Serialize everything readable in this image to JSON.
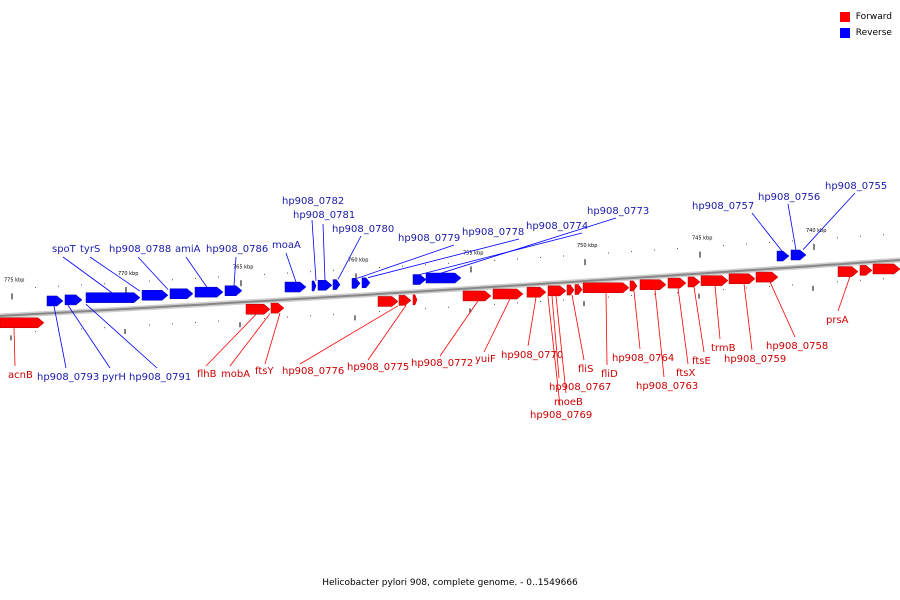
{
  "legend": [
    {
      "label": "Forward",
      "color": "#ff0000"
    },
    {
      "label": "Reverse",
      "color": "#0000ff"
    }
  ],
  "caption": "Helicobacter pylori 908, complete genome. - 0..1549666",
  "colors": {
    "forward": "#ff0000",
    "forward_label": "#cc0000",
    "reverse": "#0000ff",
    "reverse_label": "#1a1aaa",
    "backbone": "#888888"
  },
  "ticks": [
    {
      "kb": 775,
      "label": "775 kbp"
    },
    {
      "kb": 770,
      "label": "770 kbp"
    },
    {
      "kb": 765,
      "label": "765 kbp"
    },
    {
      "kb": 760,
      "label": "760 kbp"
    },
    {
      "kb": 755,
      "label": "755 kbp"
    },
    {
      "kb": 750,
      "label": "750 kbp"
    },
    {
      "kb": 745,
      "label": "745 kbp"
    },
    {
      "kb": 740,
      "label": "740 kbp"
    }
  ],
  "genes_reverse": [
    "spoT",
    "tyrS",
    "hp908_0788",
    "amiA",
    "hp908_0786",
    "moaA",
    "hp908_0782",
    "hp908_0781",
    "hp908_0780",
    "hp908_0779",
    "hp908_0778",
    "hp908_0774",
    "hp908_0773",
    "hp908_0757",
    "hp908_0756",
    "hp908_0755",
    "hp908_0793",
    "pyrH",
    "hp908_0791"
  ],
  "genes_forward": [
    "acnB",
    "flhB",
    "mobA",
    "ftsY",
    "hp908_0776",
    "hp908_0775",
    "hp908_0772",
    "yuiF",
    "hp908_0770",
    "hp908_0767",
    "moeB",
    "hp908_0769",
    "fliS",
    "fliD",
    "hp908_0764",
    "hp908_0763",
    "ftsX",
    "ftsE",
    "trmB",
    "hp908_0759",
    "hp908_0758",
    "prsA"
  ]
}
